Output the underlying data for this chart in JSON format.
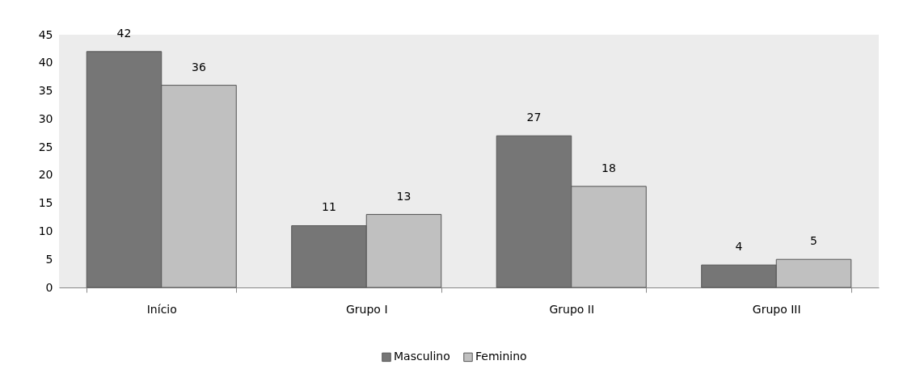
{
  "chart_data": {
    "type": "bar",
    "categories": [
      "Início",
      "Grupo I",
      "Grupo II",
      "Grupo III"
    ],
    "series": [
      {
        "name": "Masculino",
        "color": "#767676",
        "values": [
          42,
          11,
          27,
          4
        ]
      },
      {
        "name": "Feminino",
        "color": "#c0c0c0",
        "values": [
          36,
          13,
          18,
          5
        ]
      }
    ],
    "ylim": [
      0,
      45
    ],
    "yticks": [
      0,
      5,
      10,
      15,
      20,
      25,
      30,
      35,
      40,
      45
    ],
    "grid": false,
    "legend": "bottom",
    "data_labels": true
  }
}
